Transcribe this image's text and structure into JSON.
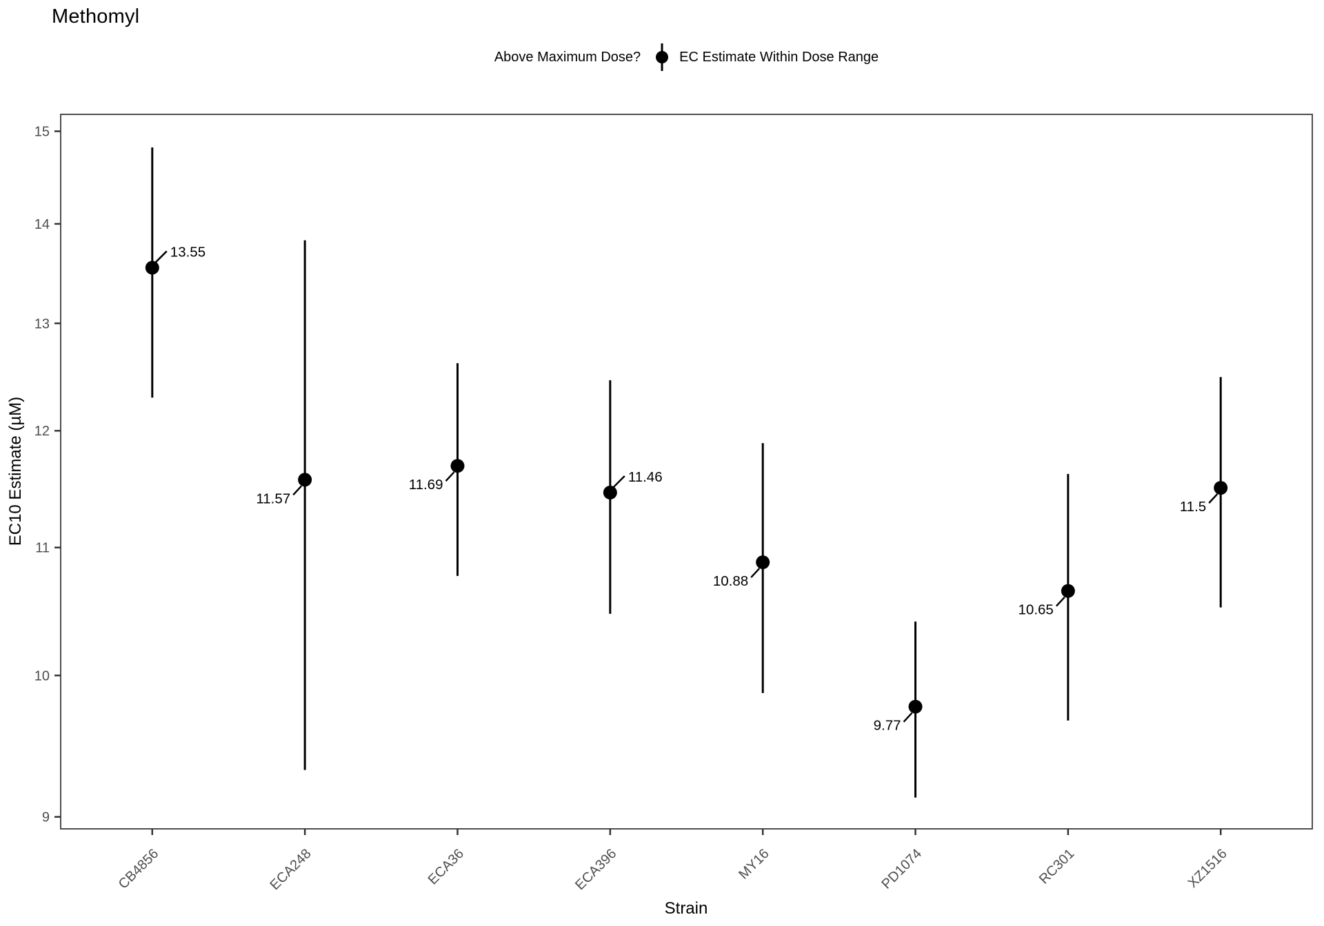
{
  "title": "Methomyl",
  "legend": {
    "title": "Above Maximum Dose?",
    "items": [
      {
        "label": "EC Estimate Within Dose Range",
        "symbol": "pointrange",
        "color": "#000000"
      }
    ]
  },
  "chart_data": {
    "type": "scatter",
    "subtype": "pointrange-with-error-bars",
    "title": "Methomyl",
    "xlabel": "Strain",
    "ylabel": "EC10 Estimate (µM)",
    "x_tick_angle_deg": 45,
    "y_scale": "log",
    "y_ticks": [
      15,
      14,
      13,
      12,
      11,
      10,
      9
    ],
    "y_range_displayed": [
      8.92,
      15.19
    ],
    "grid": "off",
    "legend_position": "top-center",
    "categories": [
      "CB4856",
      "ECA248",
      "ECA36",
      "ECA396",
      "MY16",
      "PD1074",
      "RC301",
      "XZ1516"
    ],
    "series": [
      {
        "name": "EC Estimate Within Dose Range",
        "points": [
          {
            "strain": "CB4856",
            "estimate": 13.55,
            "label": "13.55",
            "ci_low": 12.3,
            "ci_high": 14.82,
            "label_position": "upper-right"
          },
          {
            "strain": "ECA248",
            "estimate": 11.57,
            "label": "11.57",
            "ci_low": 9.32,
            "ci_high": 13.83,
            "label_position": "lower-left"
          },
          {
            "strain": "ECA36",
            "estimate": 11.69,
            "label": "11.69",
            "ci_low": 10.77,
            "ci_high": 12.62,
            "label_position": "lower-left"
          },
          {
            "strain": "ECA396",
            "estimate": 11.46,
            "label": "11.46",
            "ci_low": 10.47,
            "ci_high": 12.46,
            "label_position": "upper-right"
          },
          {
            "strain": "MY16",
            "estimate": 10.88,
            "label": "10.88",
            "ci_low": 9.87,
            "ci_high": 11.89,
            "label_position": "lower-left"
          },
          {
            "strain": "PD1074",
            "estimate": 9.77,
            "label": "9.77",
            "ci_low": 9.13,
            "ci_high": 10.41,
            "label_position": "lower-left"
          },
          {
            "strain": "RC301",
            "estimate": 10.65,
            "label": "10.65",
            "ci_low": 9.67,
            "ci_high": 11.62,
            "label_position": "lower-left"
          },
          {
            "strain": "XZ1516",
            "estimate": 11.5,
            "label": "11.5",
            "ci_low": 10.52,
            "ci_high": 12.49,
            "label_position": "lower-left"
          }
        ]
      }
    ],
    "colors": {
      "point": "#000000",
      "error_bar": "#000000",
      "data_label": "#000000",
      "axis_text": "#4D4D4D",
      "axis_line": "#333333",
      "panel_border": "#4D4D4D",
      "background": "#FFFFFF"
    }
  }
}
